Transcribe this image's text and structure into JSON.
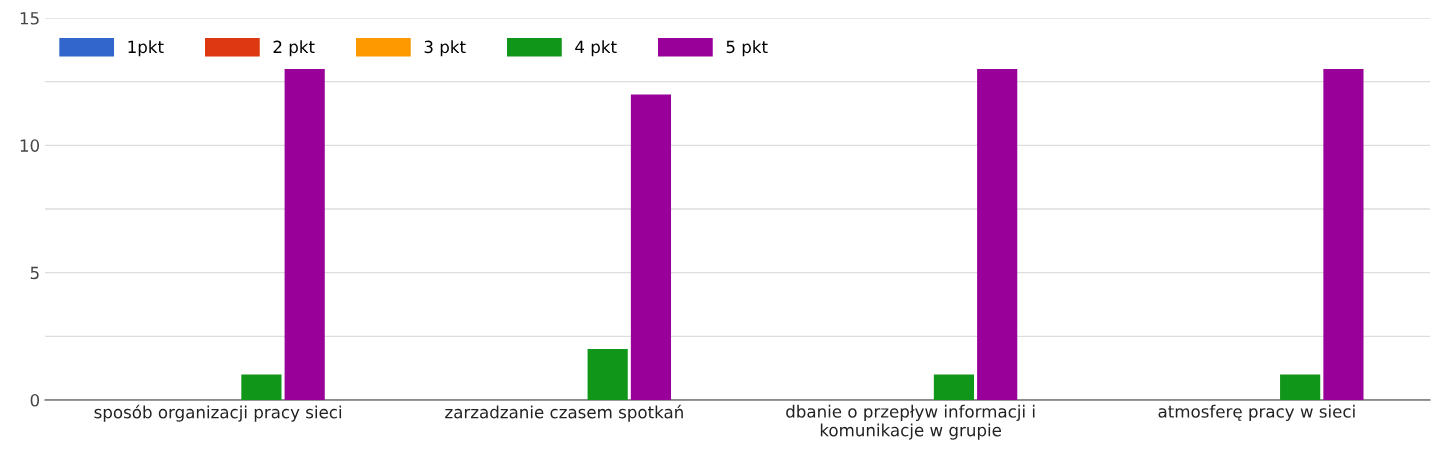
{
  "chart_data": {
    "type": "bar",
    "categories": [
      "sposób organizacji pracy sieci",
      "zarzadzanie czasem spotkań",
      "dbanie o przepływ informacji i\nkomunikacje w grupie",
      "atmosferę pracy w sieci"
    ],
    "series": [
      {
        "name": "1pkt",
        "color": "#3366cc",
        "values": [
          0,
          0,
          0,
          0
        ]
      },
      {
        "name": "2 pkt",
        "color": "#dc3912",
        "values": [
          0,
          0,
          0,
          0
        ]
      },
      {
        "name": "3 pkt",
        "color": "#ff9900",
        "values": [
          0,
          0,
          0,
          0
        ]
      },
      {
        "name": "4 pkt",
        "color": "#109618",
        "values": [
          1,
          2,
          1,
          1
        ]
      },
      {
        "name": "5 pkt",
        "color": "#990099",
        "values": [
          13,
          12,
          13,
          13
        ]
      }
    ],
    "ylim": [
      0,
      15
    ],
    "yticks": [
      0,
      {
        "value": 2.5,
        "label": null
      },
      5,
      {
        "value": 7.5,
        "label": null
      },
      10,
      {
        "value": 12.5,
        "label": null
      },
      15
    ],
    "grid": "y",
    "legend": "top left"
  }
}
